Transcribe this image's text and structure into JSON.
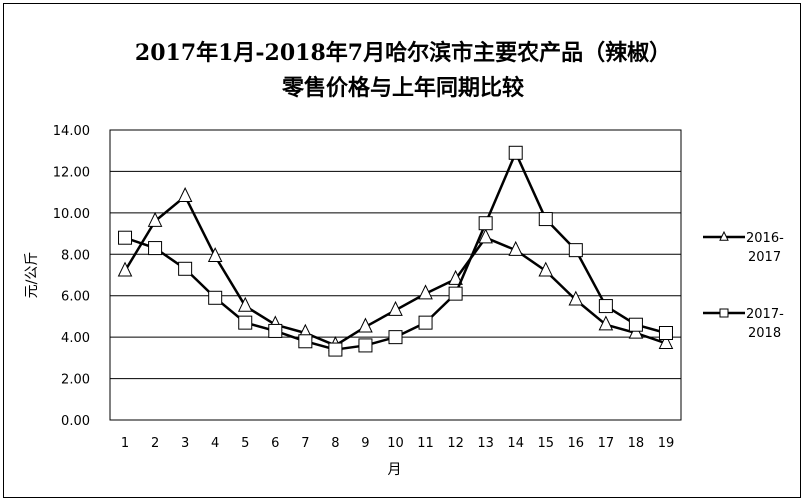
{
  "chart_data": {
    "type": "line",
    "title_line1": "2017年1月-2018年7月哈尔滨市主要农产品（辣椒）",
    "title_line2": "零售价格与上年同期比较",
    "xlabel": "月",
    "ylabel": "元/公斤",
    "categories": [
      "1",
      "2",
      "3",
      "4",
      "5",
      "6",
      "7",
      "8",
      "9",
      "10",
      "11",
      "12",
      "13",
      "14",
      "15",
      "16",
      "17",
      "18",
      "19"
    ],
    "ylim": [
      0,
      14
    ],
    "yticks": [
      "0.00",
      "2.00",
      "4.00",
      "6.00",
      "8.00",
      "10.00",
      "12.00",
      "14.00"
    ],
    "grid": true,
    "legend_position": "right",
    "series": [
      {
        "name_line1": "2016-",
        "name_line2": "2017",
        "marker": "triangle",
        "color": "#000000",
        "values": [
          7.2,
          9.6,
          10.8,
          7.9,
          5.5,
          4.6,
          4.2,
          3.6,
          4.5,
          5.3,
          6.1,
          6.8,
          8.8,
          8.2,
          7.2,
          5.8,
          4.6,
          4.2,
          3.7
        ]
      },
      {
        "name_line1": "2017-",
        "name_line2": "2018",
        "marker": "square",
        "color": "#000000",
        "values": [
          8.8,
          8.3,
          7.3,
          5.9,
          4.7,
          4.3,
          3.8,
          3.4,
          3.6,
          4.0,
          4.7,
          6.1,
          9.5,
          12.9,
          9.7,
          8.2,
          5.5,
          4.6,
          4.2
        ]
      }
    ]
  }
}
